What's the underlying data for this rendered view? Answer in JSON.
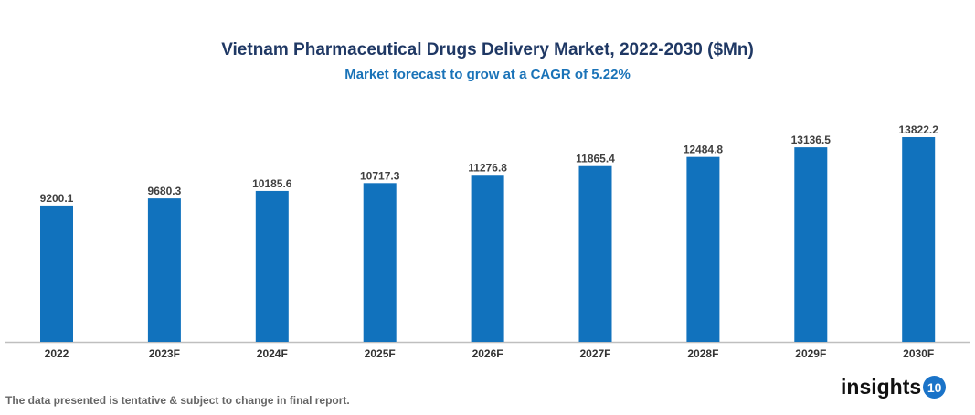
{
  "chart_data": {
    "type": "bar",
    "title": "Vietnam Pharmaceutical Drugs Delivery Market, 2022-2030 ($Mn)",
    "subtitle": "Market forecast to grow at a CAGR of 5.22%",
    "categories": [
      "2022",
      "2023F",
      "2024F",
      "2025F",
      "2026F",
      "2027F",
      "2028F",
      "2029F",
      "2030F"
    ],
    "values": [
      9200.1,
      9680.3,
      10185.6,
      10717.3,
      11276.8,
      11865.4,
      12484.8,
      13136.5,
      13822.2
    ],
    "ylim": [
      0,
      14500
    ],
    "grid": false,
    "bar_color": "#1172bd",
    "data_labels": true
  },
  "footer": {
    "note": "The data presented is tentative & subject to change in final report.",
    "logo_text": "insights",
    "logo_badge": "10"
  }
}
